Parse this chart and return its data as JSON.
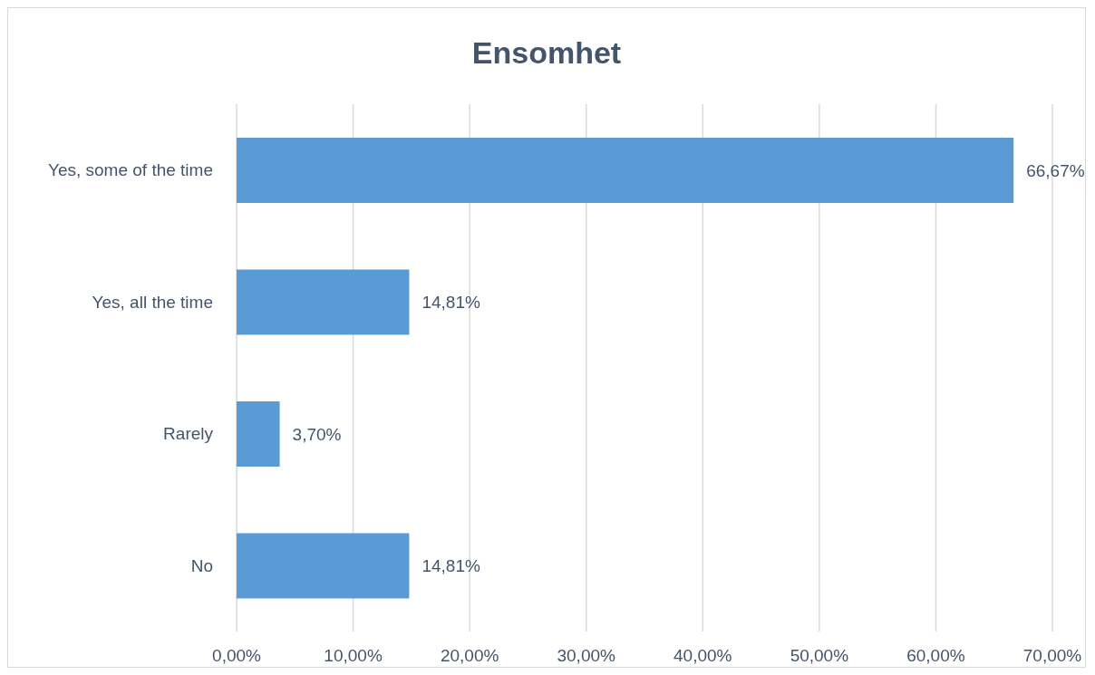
{
  "chart_data": {
    "type": "bar",
    "orientation": "horizontal",
    "title": "Ensomhet",
    "categories": [
      "Yes, some of the time",
      "Yes, all the time",
      "Rarely",
      "No"
    ],
    "values": [
      66.67,
      14.81,
      3.7,
      14.81
    ],
    "value_labels": [
      "66,67%",
      "14,81%",
      "3,70%",
      "14,81%"
    ],
    "color": "#5b9bd5",
    "xlim": [
      0,
      70
    ],
    "xticks": [
      {
        "value": 0,
        "label": "0,00%"
      },
      {
        "value": 10,
        "label": "10,00%"
      },
      {
        "value": 20,
        "label": "20,00%"
      },
      {
        "value": 30,
        "label": "30,00%"
      },
      {
        "value": 40,
        "label": "40,00%"
      },
      {
        "value": 50,
        "label": "50,00%"
      },
      {
        "value": 60,
        "label": "60,00%"
      },
      {
        "value": 70,
        "label": "70,00%"
      }
    ],
    "grid": "x"
  }
}
